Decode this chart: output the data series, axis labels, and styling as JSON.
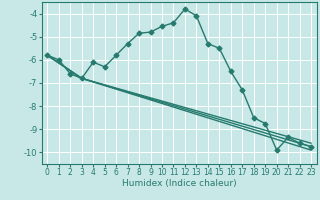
{
  "xlabel": "Humidex (Indice chaleur)",
  "ylabel": "",
  "background_color": "#c8e8e8",
  "grid_color": "#ffffff",
  "line_color": "#267a6e",
  "xlim": [
    -0.5,
    23.5
  ],
  "ylim": [
    -10.5,
    -3.5
  ],
  "xticks": [
    0,
    1,
    2,
    3,
    4,
    5,
    6,
    7,
    8,
    9,
    10,
    11,
    12,
    13,
    14,
    15,
    16,
    17,
    18,
    19,
    20,
    21,
    22,
    23
  ],
  "yticks": [
    -10,
    -9,
    -8,
    -7,
    -6,
    -5,
    -4
  ],
  "line1_x": [
    0,
    1,
    2,
    3,
    4,
    5,
    6,
    7,
    8,
    9,
    10,
    11,
    12,
    13,
    14,
    15,
    16,
    17,
    18,
    19,
    20,
    21,
    22,
    23
  ],
  "line1_y": [
    -5.8,
    -6.0,
    -6.6,
    -6.8,
    -6.1,
    -6.3,
    -5.8,
    -5.3,
    -4.85,
    -4.8,
    -4.55,
    -4.4,
    -3.8,
    -4.1,
    -5.3,
    -5.5,
    -6.5,
    -7.3,
    -8.5,
    -8.75,
    -9.9,
    -9.35,
    -9.6,
    -9.75
  ],
  "line2_x": [
    0,
    3,
    23
  ],
  "line2_y": [
    -5.8,
    -6.8,
    -9.6
  ],
  "line3_x": [
    0,
    3,
    23
  ],
  "line3_y": [
    -5.8,
    -6.8,
    -9.75
  ],
  "line4_x": [
    0,
    3,
    23
  ],
  "line4_y": [
    -5.8,
    -6.8,
    -9.9
  ]
}
